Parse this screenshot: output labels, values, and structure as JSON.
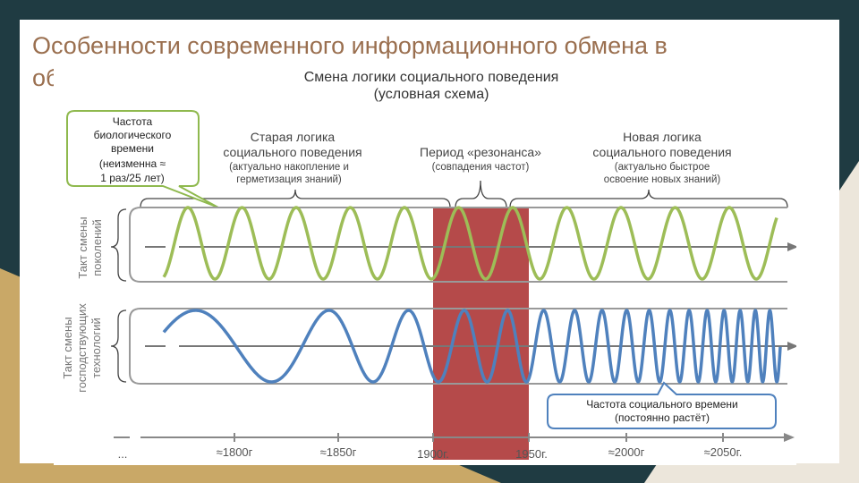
{
  "slide": {
    "title": "Особенности современного информационного обмена в",
    "title_cut": "об"
  },
  "diagram": {
    "heading": "Смена логики социального поведения",
    "subheading": "(условная схема)",
    "callout_bio": [
      "Частота",
      "биологического",
      "времени",
      "(неизменна ≈",
      "1 раз/25 лет)"
    ],
    "old_logic": [
      "Старая логика",
      "социального поведения",
      "(актуально накопление и",
      "герметизация знаний)"
    ],
    "resonance": [
      "Период «резонанса»",
      "(совпадения частот)"
    ],
    "new_logic": [
      "Новая логика",
      "социального поведения",
      "(актуально быстрое",
      "освоение новых знаний)"
    ],
    "left_label_top": [
      "Такт смены",
      "поколений"
    ],
    "left_label_bottom": [
      "Такт смены",
      "господствующих",
      "технологий"
    ],
    "callout_social": [
      "Частота социального времени",
      "(постоянно растёт)"
    ],
    "timeline": [
      "...",
      "≈1800г",
      "≈1850г",
      "1900г.",
      "1950г.",
      "≈2000г",
      "≈2050г."
    ],
    "colors": {
      "title": "#9a6f4f",
      "green_wave": "#9dbd57",
      "blue_wave": "#4f81bd",
      "resonance_band": "#b54a4a",
      "callout_green_border": "#8fb94e",
      "callout_blue_border": "#4f81bd"
    }
  }
}
